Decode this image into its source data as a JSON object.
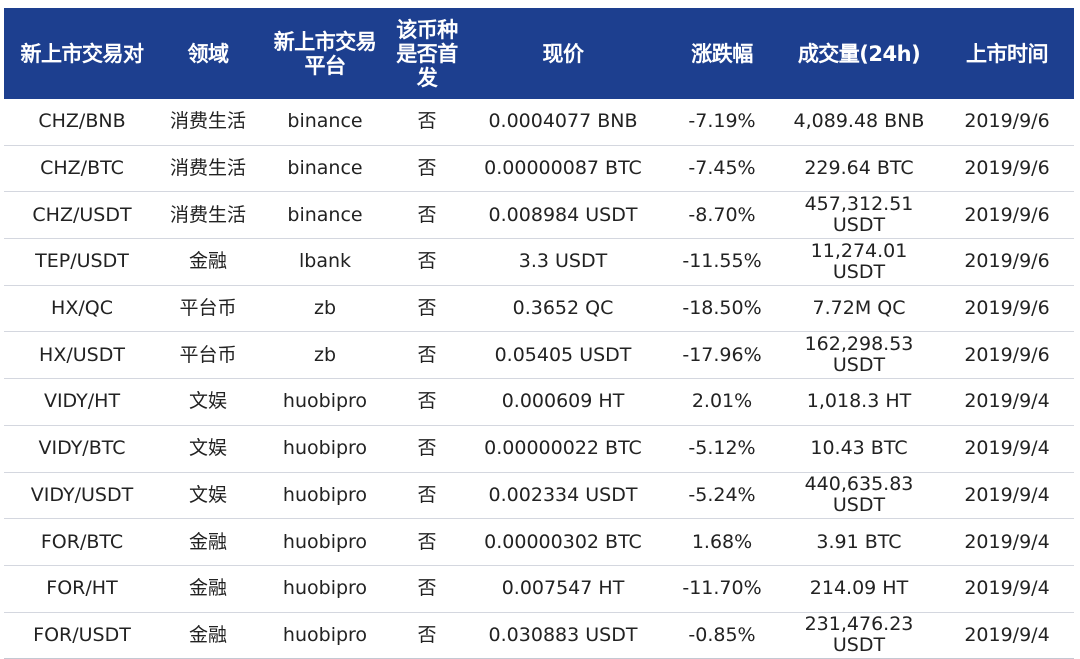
{
  "table": {
    "headers": [
      "新上市交易对",
      "领域",
      "新上市交易\n平台",
      "该币种\n是否首\n发",
      "现价",
      "涨跌幅",
      "成交量(24h)",
      "上市时间"
    ],
    "rows": [
      [
        "CHZ/BNB",
        "消费生活",
        "binance",
        "否",
        "0.0004077 BNB",
        "-7.19%",
        "4,089.48 BNB",
        "2019/9/6"
      ],
      [
        "CHZ/BTC",
        "消费生活",
        "binance",
        "否",
        "0.00000087 BTC",
        "-7.45%",
        "229.64 BTC",
        "2019/9/6"
      ],
      [
        "CHZ/USDT",
        "消费生活",
        "binance",
        "否",
        "0.008984 USDT",
        "-8.70%",
        "457,312.51\nUSDT",
        "2019/9/6"
      ],
      [
        "TEP/USDT",
        "金融",
        "lbank",
        "否",
        "3.3 USDT",
        "-11.55%",
        "11,274.01\nUSDT",
        "2019/9/6"
      ],
      [
        "HX/QC",
        "平台币",
        "zb",
        "否",
        "0.3652 QC",
        "-18.50%",
        "7.72M QC",
        "2019/9/6"
      ],
      [
        "HX/USDT",
        "平台币",
        "zb",
        "否",
        "0.05405 USDT",
        "-17.96%",
        "162,298.53\nUSDT",
        "2019/9/6"
      ],
      [
        "VIDY/HT",
        "文娱",
        "huobipro",
        "否",
        "0.000609 HT",
        "2.01%",
        "1,018.3 HT",
        "2019/9/4"
      ],
      [
        "VIDY/BTC",
        "文娱",
        "huobipro",
        "否",
        "0.00000022 BTC",
        "-5.12%",
        "10.43 BTC",
        "2019/9/4"
      ],
      [
        "VIDY/USDT",
        "文娱",
        "huobipro",
        "否",
        "0.002334 USDT",
        "-5.24%",
        "440,635.83\nUSDT",
        "2019/9/4"
      ],
      [
        "FOR/BTC",
        "金融",
        "huobipro",
        "否",
        "0.00000302 BTC",
        "1.68%",
        "3.91 BTC",
        "2019/9/4"
      ],
      [
        "FOR/HT",
        "金融",
        "huobipro",
        "否",
        "0.007547 HT",
        "-11.70%",
        "214.09 HT",
        "2019/9/4"
      ],
      [
        "FOR/USDT",
        "金融",
        "huobipro",
        "否",
        "0.030883 USDT",
        "-0.85%",
        "231,476.23\nUSDT",
        "2019/9/4"
      ]
    ]
  },
  "colors": {
    "header_background": "#1d3f8f",
    "header_text": "#ffffff",
    "row_text": "#222222",
    "row_divider": "#d4d7df"
  }
}
